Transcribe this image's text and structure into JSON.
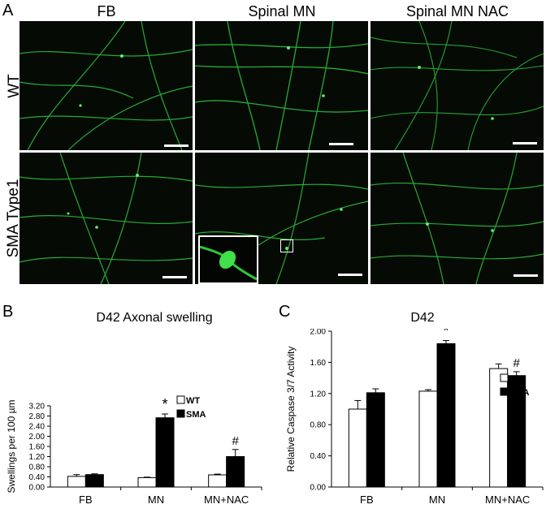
{
  "panel_a": {
    "letter": "A",
    "columns": [
      "FB",
      "Spinal MN",
      "Spinal MN NAC"
    ],
    "rows": [
      "WT",
      "SMA Type1"
    ]
  },
  "colors": {
    "neurite": "#2ec83a",
    "background": "#050a05",
    "bar_wt": "#ffffff",
    "bar_sma": "#000000"
  },
  "chart_data": [
    {
      "type": "bar",
      "letter": "B",
      "title": "D42 Axonal swelling",
      "ylabel": "Swellings per 100 µm",
      "xlabel": "",
      "categories": [
        "FB",
        "MN",
        "MN+NAC"
      ],
      "ylim": [
        0,
        3.2
      ],
      "yticks": [
        "0.00",
        "0.40",
        "0.80",
        "1.20",
        "1.60",
        "2.00",
        "2.40",
        "2.80",
        "3.20"
      ],
      "series": [
        {
          "name": "WT",
          "values": [
            0.42,
            0.37,
            0.48
          ],
          "errors": [
            0.07,
            0.02,
            0.03
          ]
        },
        {
          "name": "SMA",
          "values": [
            0.49,
            2.73,
            1.2
          ],
          "errors": [
            0.03,
            0.15,
            0.28
          ]
        }
      ],
      "annotations": [
        {
          "category": "MN",
          "series": "SMA",
          "text": "*"
        },
        {
          "category": "MN+NAC",
          "series": "SMA",
          "text": "#"
        }
      ],
      "legend": "top-right",
      "grid": false
    },
    {
      "type": "bar",
      "letter": "C",
      "title": "D42",
      "ylabel": "Relative Caspase 3/7 Activity",
      "xlabel": "",
      "categories": [
        "FB",
        "MN",
        "MN+NAC"
      ],
      "ylim": [
        0,
        2.0
      ],
      "yticks": [
        "0.00",
        "0.40",
        "0.80",
        "1.20",
        "1.60",
        "2.00"
      ],
      "series": [
        {
          "name": "WT",
          "values": [
            1.0,
            1.23,
            1.52
          ],
          "errors": [
            0.11,
            0.02,
            0.06
          ]
        },
        {
          "name": "SMA",
          "values": [
            1.21,
            1.84,
            1.43
          ],
          "errors": [
            0.05,
            0.04,
            0.05
          ]
        }
      ],
      "annotations": [
        {
          "category": "MN",
          "series": "SMA",
          "text": "*"
        },
        {
          "category": "MN+NAC",
          "series": "SMA",
          "text": "#"
        }
      ],
      "legend": "top-right",
      "grid": false
    }
  ]
}
